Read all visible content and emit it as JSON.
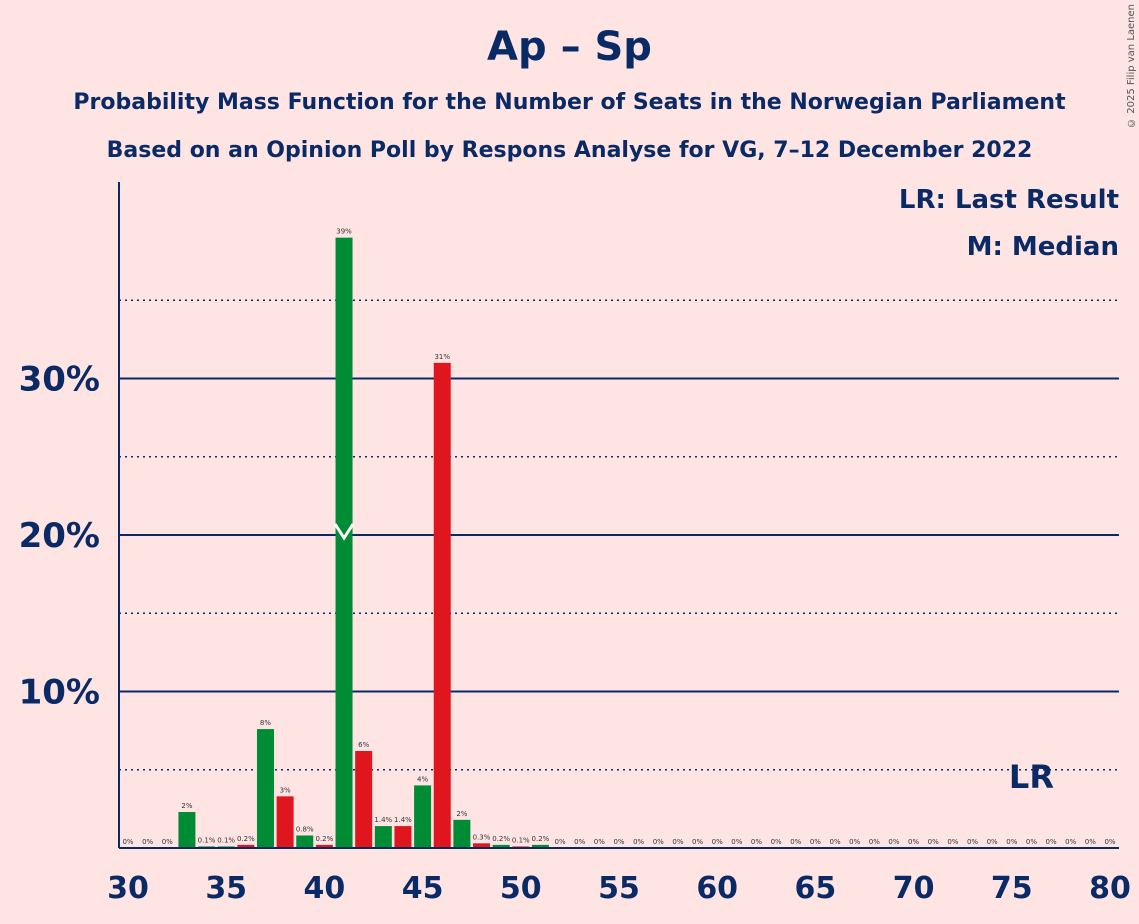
{
  "title": "Ap – Sp",
  "subtitle_1": "Probability Mass Function for the Number of Seats in the Norwegian Parliament",
  "subtitle_2": "Based on an Opinion Poll by Respons Analyse for VG, 7–12 December 2022",
  "copyright": "© 2025 Filip van Laenen",
  "legend": {
    "last_result": "LR: Last Result",
    "median": "M: Median"
  },
  "colors": {
    "background": "#FFE4E4",
    "axis": "#0A2A66",
    "green": "#008C35",
    "red": "#E0161F"
  },
  "chart_data": {
    "type": "bar",
    "xlim": [
      30,
      80
    ],
    "ylim": [
      0,
      40
    ],
    "x_ticks": [
      "30",
      "35",
      "40",
      "45",
      "50",
      "55",
      "60",
      "65",
      "70",
      "75",
      "80"
    ],
    "y_ticks": [
      {
        "value": 10,
        "label": "10%"
      },
      {
        "value": 20,
        "label": "20%"
      },
      {
        "value": 30,
        "label": "30%"
      }
    ],
    "dotted_gridlines": [
      5,
      15,
      25,
      35
    ],
    "median": 41,
    "last_result": 76,
    "last_result_label": "LR",
    "bars": [
      {
        "x": 30,
        "value": 0,
        "label": "0%",
        "color": "green"
      },
      {
        "x": 31,
        "value": 0,
        "label": "0%",
        "color": "green"
      },
      {
        "x": 32,
        "value": 0,
        "label": "0%",
        "color": "green"
      },
      {
        "x": 33,
        "value": 2.3,
        "label": "2%",
        "color": "green"
      },
      {
        "x": 34,
        "value": 0.1,
        "label": "0.1%",
        "color": "green"
      },
      {
        "x": 35,
        "value": 0.1,
        "label": "0.1%",
        "color": "green"
      },
      {
        "x": 36,
        "value": 0.2,
        "label": "0.2%",
        "color": "red"
      },
      {
        "x": 37,
        "value": 7.6,
        "label": "8%",
        "color": "green"
      },
      {
        "x": 38,
        "value": 3.3,
        "label": "3%",
        "color": "red"
      },
      {
        "x": 39,
        "value": 0.8,
        "label": "0.8%",
        "color": "green"
      },
      {
        "x": 40,
        "value": 0.2,
        "label": "0.2%",
        "color": "red"
      },
      {
        "x": 41,
        "value": 39,
        "label": "39%",
        "color": "green"
      },
      {
        "x": 42,
        "value": 6.2,
        "label": "6%",
        "color": "red"
      },
      {
        "x": 43,
        "value": 1.4,
        "label": "1.4%",
        "color": "green"
      },
      {
        "x": 44,
        "value": 1.4,
        "label": "1.4%",
        "color": "red"
      },
      {
        "x": 45,
        "value": 4,
        "label": "4%",
        "color": "green"
      },
      {
        "x": 46,
        "value": 31,
        "label": "31%",
        "color": "red"
      },
      {
        "x": 47,
        "value": 1.8,
        "label": "2%",
        "color": "green"
      },
      {
        "x": 48,
        "value": 0.3,
        "label": "0.3%",
        "color": "red"
      },
      {
        "x": 49,
        "value": 0.2,
        "label": "0.2%",
        "color": "green"
      },
      {
        "x": 50,
        "value": 0.1,
        "label": "0.1%",
        "color": "red"
      },
      {
        "x": 51,
        "value": 0.2,
        "label": "0.2%",
        "color": "green"
      },
      {
        "x": 52,
        "value": 0,
        "label": "0%",
        "color": "green"
      },
      {
        "x": 53,
        "value": 0,
        "label": "0%",
        "color": "green"
      },
      {
        "x": 54,
        "value": 0,
        "label": "0%",
        "color": "green"
      },
      {
        "x": 55,
        "value": 0,
        "label": "0%",
        "color": "green"
      },
      {
        "x": 56,
        "value": 0,
        "label": "0%",
        "color": "green"
      },
      {
        "x": 57,
        "value": 0,
        "label": "0%",
        "color": "green"
      },
      {
        "x": 58,
        "value": 0,
        "label": "0%",
        "color": "green"
      },
      {
        "x": 59,
        "value": 0,
        "label": "0%",
        "color": "green"
      },
      {
        "x": 60,
        "value": 0,
        "label": "0%",
        "color": "green"
      },
      {
        "x": 61,
        "value": 0,
        "label": "0%",
        "color": "green"
      },
      {
        "x": 62,
        "value": 0,
        "label": "0%",
        "color": "green"
      },
      {
        "x": 63,
        "value": 0,
        "label": "0%",
        "color": "green"
      },
      {
        "x": 64,
        "value": 0,
        "label": "0%",
        "color": "green"
      },
      {
        "x": 65,
        "value": 0,
        "label": "0%",
        "color": "green"
      },
      {
        "x": 66,
        "value": 0,
        "label": "0%",
        "color": "green"
      },
      {
        "x": 67,
        "value": 0,
        "label": "0%",
        "color": "green"
      },
      {
        "x": 68,
        "value": 0,
        "label": "0%",
        "color": "green"
      },
      {
        "x": 69,
        "value": 0,
        "label": "0%",
        "color": "green"
      },
      {
        "x": 70,
        "value": 0,
        "label": "0%",
        "color": "green"
      },
      {
        "x": 71,
        "value": 0,
        "label": "0%",
        "color": "green"
      },
      {
        "x": 72,
        "value": 0,
        "label": "0%",
        "color": "green"
      },
      {
        "x": 73,
        "value": 0,
        "label": "0%",
        "color": "green"
      },
      {
        "x": 74,
        "value": 0,
        "label": "0%",
        "color": "green"
      },
      {
        "x": 75,
        "value": 0,
        "label": "0%",
        "color": "green"
      },
      {
        "x": 76,
        "value": 0,
        "label": "0%",
        "color": "green"
      },
      {
        "x": 77,
        "value": 0,
        "label": "0%",
        "color": "green"
      },
      {
        "x": 78,
        "value": 0,
        "label": "0%",
        "color": "green"
      },
      {
        "x": 79,
        "value": 0,
        "label": "0%",
        "color": "green"
      },
      {
        "x": 80,
        "value": 0,
        "label": "0%",
        "color": "green"
      }
    ]
  }
}
